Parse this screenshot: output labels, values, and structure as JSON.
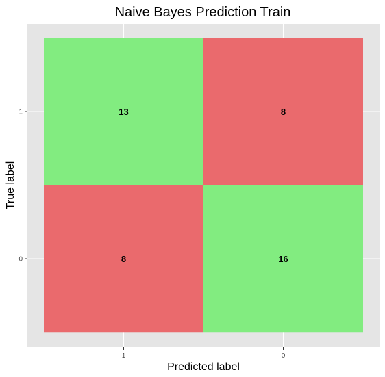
{
  "chart_data": {
    "type": "heatmap",
    "title": "Naive Bayes Prediction Train",
    "xlabel": "Predicted label",
    "ylabel": "True label",
    "x_categories": [
      "1",
      "0"
    ],
    "y_categories": [
      "1",
      "0"
    ],
    "cells": [
      {
        "true": "1",
        "predicted": "1",
        "value": 13,
        "color": "#82ec80"
      },
      {
        "true": "1",
        "predicted": "0",
        "value": 8,
        "color": "#ea6a6d"
      },
      {
        "true": "0",
        "predicted": "1",
        "value": 8,
        "color": "#ea6a6d"
      },
      {
        "true": "0",
        "predicted": "0",
        "value": 16,
        "color": "#82ec80"
      }
    ],
    "grid": true,
    "colors": {
      "panel_background": "#e5e5e5",
      "grid_line": "#ffffff",
      "correct": "#82ec80",
      "incorrect": "#ea6a6d"
    }
  }
}
